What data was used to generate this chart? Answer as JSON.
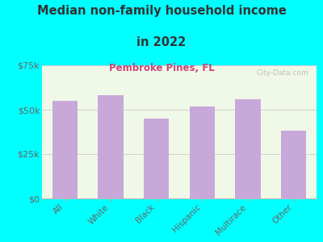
{
  "title_line1": "Median non-family household income",
  "title_line2": "in 2022",
  "subtitle": "Pembroke Pines, FL",
  "categories": [
    "All",
    "White",
    "Black",
    "Hispanic",
    "Multirace",
    "Other"
  ],
  "values": [
    55000,
    58000,
    45000,
    52000,
    56000,
    38000
  ],
  "bar_color": "#c8a8d8",
  "background_outer": "#00ffff",
  "background_plot_top": "#f0f8e8",
  "background_plot_bottom": "#e0efcc",
  "title_color": "#333333",
  "subtitle_color": "#cc4477",
  "axis_label_color": "#666666",
  "ytick_color": "#666666",
  "ylim": [
    0,
    75000
  ],
  "yticks": [
    0,
    25000,
    50000,
    75000
  ],
  "watermark": "City-Data.com",
  "grid_color": "#cccccc"
}
